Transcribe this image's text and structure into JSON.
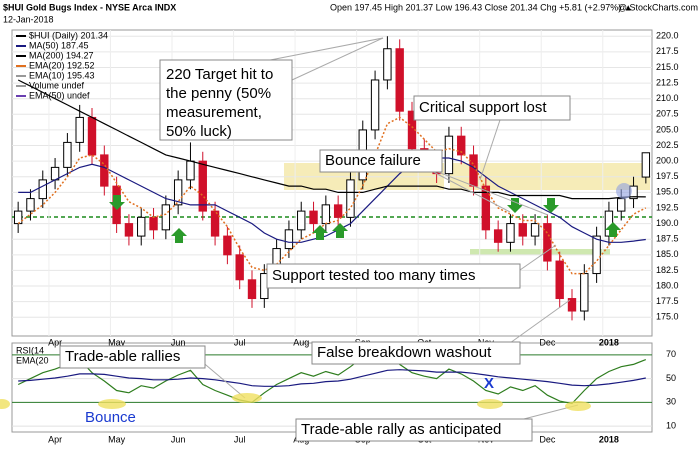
{
  "chart_data": {
    "type": "candlestick",
    "title": "$HUI Gold Bugs Index - NYSE Arca INDX",
    "date": "12-Jan-2018",
    "quote": "Open 197.45  High 201.37  Low 196.43  Close 201.34  Chg +5.81 (+2.97%) ▲",
    "watermark": "@ StockCharts.com",
    "legend": [
      {
        "label": "$HUI (Daily) 201.34",
        "color": "#000000"
      },
      {
        "label": "MA(50) 187.45",
        "color": "#1a1a80"
      },
      {
        "label": "MA(200) 194.27",
        "color": "#000000"
      },
      {
        "label": "EMA(20) 192.52",
        "color": "#e07020"
      },
      {
        "label": "EMA(10) 195.43",
        "color": "#999999"
      },
      {
        "label": "Volume undef",
        "color": "#999999"
      },
      {
        "label": "EMA(50) undef",
        "color": "#6a3fb0"
      }
    ],
    "categories": [
      null,
      null,
      null,
      "Apr",
      null,
      null,
      null,
      null,
      "May",
      null,
      null,
      null,
      null,
      "Jun",
      null,
      null,
      null,
      null,
      "Jul",
      null,
      null,
      null,
      null,
      "Aug",
      null,
      null,
      null,
      null,
      "Sep",
      null,
      null,
      null,
      null,
      "Oct",
      null,
      null,
      null,
      null,
      "Nov",
      null,
      null,
      null,
      null,
      "Dec",
      null,
      null,
      null,
      null,
      "2018",
      null,
      null,
      null
    ],
    "open": [
      190,
      192,
      194,
      197,
      199,
      203,
      207,
      201,
      196,
      190,
      188,
      191,
      189,
      193,
      197,
      200,
      192,
      188,
      185,
      181,
      178,
      182,
      186,
      189,
      192,
      190,
      193,
      191,
      197,
      205,
      213,
      218,
      208,
      202,
      200,
      198,
      204,
      201,
      196,
      189,
      187,
      190,
      188,
      190,
      184,
      178,
      176,
      182,
      188,
      192,
      194,
      197.45
    ],
    "high": [
      193.5,
      195.5,
      198.5,
      200.5,
      204.5,
      209,
      208.5,
      202.5,
      197.5,
      191.5,
      192.5,
      192.5,
      194.5,
      198.5,
      203,
      201.5,
      193.5,
      189.5,
      186.5,
      182.5,
      183.5,
      187.5,
      190.5,
      193.5,
      193.5,
      194.5,
      194.5,
      198.5,
      206.5,
      214.5,
      220,
      219.5,
      209.5,
      203.5,
      201.5,
      205.5,
      205.5,
      202.5,
      197.5,
      190.5,
      191.5,
      191.5,
      191.5,
      191.5,
      185.5,
      179.5,
      183.5,
      189.5,
      193.5,
      195.5,
      197.5,
      201.37
    ],
    "low": [
      188.5,
      190.5,
      192.5,
      195.5,
      197.5,
      201.5,
      199.5,
      194.5,
      188.5,
      186.5,
      186.5,
      187.5,
      187.5,
      191.5,
      195.5,
      190.5,
      186.5,
      183.5,
      179.5,
      176.5,
      176.5,
      180.5,
      184.5,
      187.5,
      188.5,
      188.5,
      189.5,
      189.5,
      195.5,
      203.5,
      211.5,
      206.5,
      200.5,
      198.5,
      196.5,
      196.5,
      199.5,
      194.5,
      187.5,
      185.5,
      185.5,
      186.5,
      186.5,
      182.5,
      176.5,
      174.5,
      174.5,
      180.5,
      186.5,
      190.5,
      192.5,
      196.43
    ],
    "close": [
      192,
      194,
      197,
      199,
      203,
      207,
      201,
      196,
      190,
      188,
      191,
      189,
      193,
      197,
      200,
      192,
      188,
      185,
      181,
      178,
      182,
      186,
      189,
      192,
      190,
      193,
      191,
      197,
      205,
      213,
      218,
      208,
      202,
      200,
      198,
      204,
      201,
      196,
      189,
      187,
      190,
      188,
      190,
      184,
      178,
      176,
      182,
      188,
      192,
      194,
      196,
      201.34
    ],
    "series": [
      {
        "name": "MA(50)",
        "color": "#1a1a80",
        "values": [
          195,
          195,
          196,
          197,
          198,
          199,
          199.5,
          199,
          198,
          197,
          196,
          195,
          194,
          193.5,
          193,
          193,
          193,
          192,
          191,
          190,
          188.5,
          187.5,
          187,
          187,
          187.5,
          188,
          189,
          190,
          192,
          194,
          196,
          198,
          199.5,
          200,
          200.5,
          200.5,
          200,
          199,
          197.5,
          196,
          195,
          194,
          193,
          192,
          191,
          189.5,
          188.5,
          187.5,
          187,
          187,
          187.2,
          187.45
        ]
      },
      {
        "name": "MA(200)",
        "color": "#000000",
        "values": [
          213,
          212,
          211,
          210,
          209,
          208,
          207,
          206,
          205,
          204,
          203,
          202,
          201,
          200.5,
          200,
          199.5,
          199,
          198.5,
          198,
          197.5,
          197,
          196.5,
          196,
          196,
          195.5,
          195.5,
          195,
          195,
          195,
          195.5,
          196,
          196,
          196,
          196,
          196,
          195.5,
          195.5,
          195,
          195,
          195,
          194.5,
          194.5,
          194.5,
          194.5,
          194.5,
          194,
          194,
          194,
          194,
          194.2,
          194.3,
          194.27
        ]
      },
      {
        "name": "EMA(20)",
        "color": "#e07020",
        "values": [
          190,
          191.5,
          193,
          195,
          197.5,
          200.5,
          201,
          199.5,
          196.5,
          193.5,
          192.5,
          191,
          191.5,
          193.5,
          196,
          194.5,
          192,
          189.5,
          186,
          183,
          182.5,
          183.5,
          185.5,
          187.5,
          188.5,
          190,
          190.5,
          192.5,
          196,
          201,
          206,
          207,
          205.5,
          203.5,
          201.5,
          202,
          201.5,
          199.5,
          195.5,
          192.5,
          191.5,
          190.5,
          190.5,
          188.5,
          185,
          182,
          182,
          184,
          186.5,
          189,
          191.5,
          192.52
        ]
      }
    ],
    "ylim": [
      172,
      221
    ],
    "yticks": [
      {
        "value": 175,
        "label": "175.0"
      },
      {
        "value": 177.5,
        "label": "177.5"
      },
      {
        "value": 180,
        "label": "180.0"
      },
      {
        "value": 182.5,
        "label": "182.5"
      },
      {
        "value": 185,
        "label": "185.0"
      },
      {
        "value": 187.5,
        "label": "187.5"
      },
      {
        "value": 190,
        "label": "190.0"
      },
      {
        "value": 192.5,
        "label": "192.5"
      },
      {
        "value": 195,
        "label": "195.0"
      },
      {
        "value": 197.5,
        "label": "197.5"
      },
      {
        "value": 200,
        "label": "200.0"
      },
      {
        "value": 202.5,
        "label": "202.5"
      },
      {
        "value": 205,
        "label": "205.0"
      },
      {
        "value": 207.5,
        "label": "207.5"
      },
      {
        "value": 210,
        "label": "210.0"
      },
      {
        "value": 212.5,
        "label": "212.5"
      },
      {
        "value": 215,
        "label": "215.0"
      },
      {
        "value": 217.5,
        "label": "217.5"
      },
      {
        "value": 220,
        "label": "220.0"
      }
    ],
    "grid": true,
    "up_color": "#000000",
    "down_color": "#d0102a",
    "annotations": {
      "target": [
        "220 Target hit to",
        "the penny (50%",
        "measurement,",
        "50% luck)"
      ],
      "critical": "Critical support lost",
      "bounce_failure": "Bounce failure",
      "support_tested": "Support tested too many times",
      "false_breakdown": "False breakdown washout",
      "rallies": "Trade-able rallies",
      "bounce": "Bounce",
      "x_mark": "X",
      "anticipated": "Trade-able rally as anticipated"
    },
    "rsi": {
      "labels": [
        "RSI(14",
        "EMA(20"
      ],
      "series": [
        {
          "name": "RSI(14)",
          "color": "#2e7d1e",
          "values": [
            45,
            50,
            55,
            58,
            62,
            66,
            55,
            48,
            40,
            38,
            44,
            42,
            48,
            53,
            57,
            45,
            40,
            36,
            32,
            30,
            38,
            45,
            50,
            55,
            52,
            56,
            53,
            60,
            68,
            74,
            76,
            62,
            55,
            52,
            50,
            58,
            54,
            48,
            40,
            37,
            43,
            40,
            44,
            36,
            31,
            29,
            40,
            50,
            56,
            60,
            62,
            66
          ]
        },
        {
          "name": "EMA(20)",
          "color": "#1a1a80",
          "values": [
            48,
            48.5,
            49.5,
            50.5,
            52,
            54,
            54,
            53.5,
            52,
            50.5,
            50,
            49,
            49,
            49.5,
            50.5,
            50,
            49,
            47.5,
            46,
            44,
            43.5,
            43.5,
            44,
            45.5,
            46,
            47.5,
            48,
            49.5,
            52,
            54.5,
            57,
            57.5,
            57,
            56.5,
            55.5,
            55.5,
            55.5,
            54.5,
            53,
            51.5,
            50.5,
            49.5,
            48.5,
            47.5,
            46,
            44.5,
            44,
            44.5,
            45.5,
            47,
            48.5,
            50.5
          ]
        }
      ],
      "ylim": [
        5,
        80
      ],
      "yticks": [
        10,
        30,
        50,
        70
      ]
    }
  }
}
